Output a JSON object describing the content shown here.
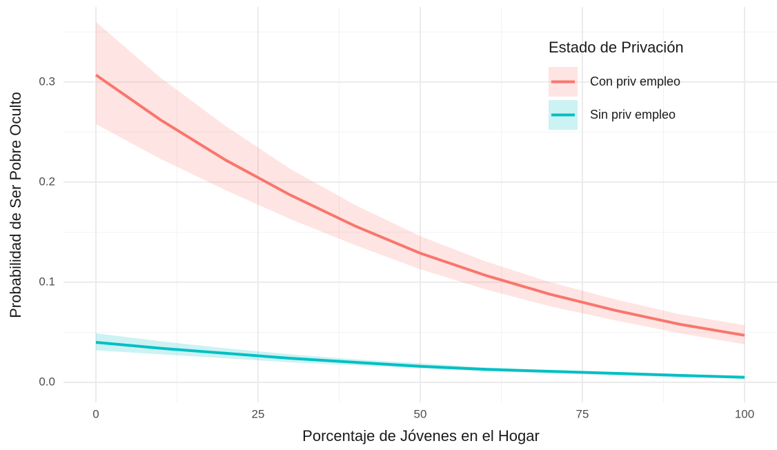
{
  "chart_data": {
    "type": "line",
    "x_label": "Porcentaje de Jóvenes en el Hogar",
    "y_label": "Probabilidad de Ser Pobre Oculto",
    "legend_title": "Estado de Privación",
    "x": [
      0,
      10,
      20,
      30,
      40,
      50,
      60,
      70,
      80,
      90,
      100
    ],
    "series": [
      {
        "name": "Con priv empleo",
        "color": "#f8766d",
        "values": [
          0.307,
          0.262,
          0.222,
          0.187,
          0.156,
          0.129,
          0.107,
          0.088,
          0.072,
          0.058,
          0.047
        ],
        "lower": [
          0.258,
          0.223,
          0.192,
          0.163,
          0.137,
          0.113,
          0.093,
          0.076,
          0.062,
          0.049,
          0.038
        ],
        "upper": [
          0.36,
          0.304,
          0.256,
          0.213,
          0.177,
          0.146,
          0.121,
          0.1,
          0.083,
          0.068,
          0.057
        ]
      },
      {
        "name": "Sin priv empleo",
        "color": "#00bfc4",
        "values": [
          0.04,
          0.034,
          0.029,
          0.024,
          0.02,
          0.016,
          0.013,
          0.011,
          0.009,
          0.007,
          0.005
        ],
        "lower": [
          0.032,
          0.028,
          0.024,
          0.02,
          0.017,
          0.014,
          0.011,
          0.009,
          0.007,
          0.005,
          0.004
        ],
        "upper": [
          0.049,
          0.041,
          0.034,
          0.028,
          0.023,
          0.019,
          0.015,
          0.012,
          0.01,
          0.008,
          0.007
        ]
      }
    ],
    "xlim": [
      -5,
      105
    ],
    "xticks": [
      0,
      25,
      50,
      75,
      100
    ],
    "ylim": [
      -0.02,
      0.375
    ],
    "yticks": [
      {
        "value": 0,
        "label": "0.0"
      },
      0.1,
      0.2,
      0.3
    ],
    "grid": true,
    "legend": "top-right"
  }
}
